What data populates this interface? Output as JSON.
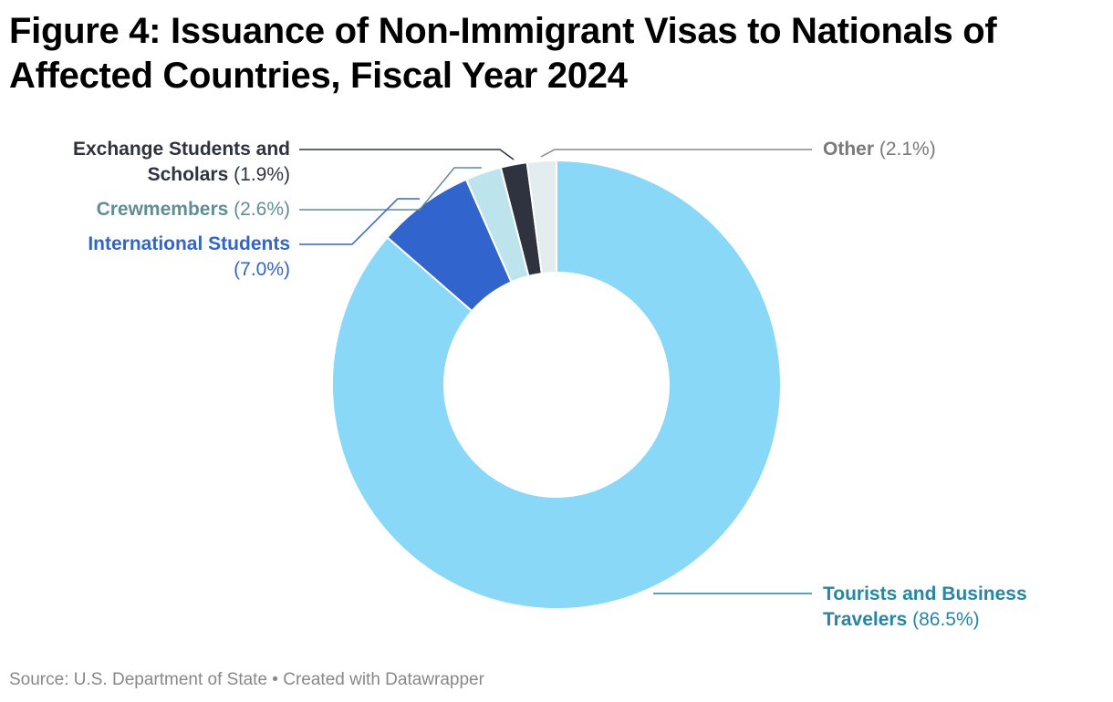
{
  "title": "Figure 4: Issuance of Non-Immigrant Visas to Nationals of Affected Countries, Fiscal Year 2024",
  "source": "Source: U.S. Department of State • Created with Datawrapper",
  "chart_data": {
    "type": "pie",
    "subtype": "donut",
    "title": "Figure 4: Issuance of Non-Immigrant Visas to Nationals of Affected Countries, Fiscal Year 2024",
    "unit": "%",
    "slices": [
      {
        "name": "Tourists and Business Travelers",
        "value": 86.5,
        "value_label": "(86.5%)",
        "color": "#89d8f7",
        "label_color": "#2786a4"
      },
      {
        "name": "International Students",
        "value": 7.0,
        "value_label": "(7.0%)",
        "color": "#3264cd",
        "label_color": "#3264cd"
      },
      {
        "name": "Crewmembers",
        "value": 2.6,
        "value_label": "(2.6%)",
        "color": "#bde4ed",
        "label_color": "#5f8e95"
      },
      {
        "name": "Exchange Students and Scholars",
        "value": 1.9,
        "value_label": "(1.9%)",
        "color": "#2f333f",
        "label_color": "#2f333f"
      },
      {
        "name": "Other",
        "value": 2.1,
        "value_label": "(2.1%)",
        "color": "#e3ecee",
        "label_color": "#7a7a7a"
      }
    ]
  }
}
